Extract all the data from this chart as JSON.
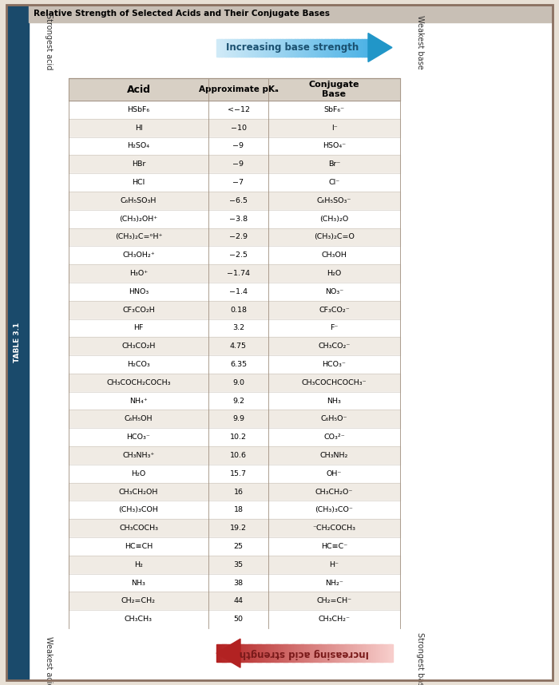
{
  "title": "TABLE 3.1  Relative Strength of Selected Acids and Their Conjugate Bases",
  "acids": [
    "HSbF₆",
    "HI",
    "H₂SO₄",
    "HBr",
    "HCl",
    "C₆H₅SO₃H",
    "(CH₃)₂OH⁺",
    "(CH₃)₂C=ᵒH⁺",
    "CH₃OH₂⁺",
    "H₃O⁺",
    "HNO₃",
    "CF₃CO₂H",
    "HF",
    "CH₃CO₂H",
    "H₂CO₃",
    "CH₃COCH₂COCH₃",
    "NH₄⁺",
    "C₆H₅OH",
    "HCO₃⁻",
    "CH₃NH₃⁺",
    "H₂O",
    "CH₃CH₂OH",
    "(CH₃)₃COH",
    "CH₃COCH₃",
    "HC≡CH",
    "H₂",
    "NH₃",
    "CH₂=CH₂",
    "CH₃CH₃"
  ],
  "pka": [
    "<−12",
    "−10",
    "−9",
    "−9",
    "−7",
    "−6.5",
    "−3.8",
    "−2.9",
    "−2.5",
    "−1.74",
    "−1.4",
    "0.18",
    "3.2",
    "4.75",
    "6.35",
    "9.0",
    "9.2",
    "9.9",
    "10.2",
    "10.6",
    "15.7",
    "16",
    "18",
    "19.2",
    "25",
    "35",
    "38",
    "44",
    "50"
  ],
  "conjugate_bases": [
    "SbF₆⁻",
    "I⁻",
    "HSO₄⁻",
    "Br⁻",
    "Cl⁻",
    "C₆H₅SO₃⁻",
    "(CH₃)₂O",
    "(CH₃)₂C=O",
    "CH₃OH",
    "H₂O",
    "NO₃⁻",
    "CF₃CO₂⁻",
    "F⁻",
    "CH₃CO₂⁻",
    "HCO₃⁻",
    "CH₃COCHCOCH₃⁻",
    "NH₃",
    "C₆H₅O⁻",
    "CO₃²⁻",
    "CH₃NH₂",
    "OH⁻",
    "CH₃CH₂O⁻",
    "(CH₃)₃CO⁻",
    "⁻CH₂COCH₃",
    "HC≡C⁻",
    "H⁻",
    "NH₂⁻",
    "CH₂=CH⁻",
    "CH₃CH₂⁻"
  ],
  "outer_bg": "#e8e0d5",
  "inner_bg": "#ffffff",
  "left_bar_color": "#1a4a6b",
  "title_bg": "#c8bfb5",
  "row_even": "#ffffff",
  "row_odd": "#f0ebe4",
  "header_bg": "#d8d0c5",
  "col_header_color": "#2c2c2c",
  "border_color": "#a09080"
}
